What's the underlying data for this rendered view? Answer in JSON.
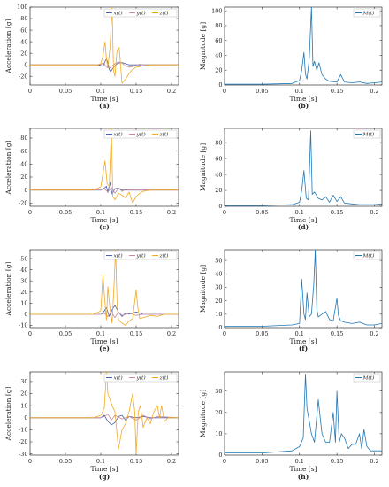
{
  "chart_data": [
    {
      "panel": "(a)",
      "type": "line",
      "xlabel": "Time [s]",
      "ylabel": "Acceleration [g]",
      "xlim": [
        0,
        0.21
      ],
      "ylim": [
        -35,
        100
      ],
      "xticks": [
        0,
        0.05,
        0.1,
        0.15,
        0.2
      ],
      "yticks": [
        -20,
        0,
        20,
        40,
        60,
        80,
        100
      ],
      "legend": [
        "x(t)",
        "y(t)",
        "z(t)"
      ],
      "legend_position": "top-right",
      "series": [
        {
          "name": "x(t)",
          "color": "#4a5fa8",
          "x": [
            0,
            0.095,
            0.1,
            0.103,
            0.106,
            0.108,
            0.11,
            0.112,
            0.114,
            0.116,
            0.119,
            0.122,
            0.125,
            0.13,
            0.135,
            0.14,
            0.15,
            0.16,
            0.17,
            0.18,
            0.21
          ],
          "y": [
            0,
            0,
            -1,
            -3,
            6,
            10,
            4,
            -8,
            -12,
            -8,
            -3,
            1,
            3,
            4,
            2,
            0,
            0,
            0,
            0,
            0,
            0
          ]
        },
        {
          "name": "y(t)",
          "color": "#c58aa0",
          "x": [
            0,
            0.095,
            0.1,
            0.104,
            0.108,
            0.112,
            0.116,
            0.12,
            0.125,
            0.13,
            0.135,
            0.14,
            0.145,
            0.15,
            0.155,
            0.16,
            0.17,
            0.21
          ],
          "y": [
            0,
            0,
            1,
            3,
            -4,
            -6,
            -2,
            2,
            5,
            3,
            -2,
            -4,
            -3,
            -1,
            1,
            0,
            0,
            0
          ]
        },
        {
          "name": "z(t)",
          "color": "#f2a922",
          "x": [
            0,
            0.095,
            0.1,
            0.103,
            0.106,
            0.108,
            0.11,
            0.113,
            0.116,
            0.118,
            0.12,
            0.123,
            0.126,
            0.13,
            0.135,
            0.14,
            0.145,
            0.15,
            0.16,
            0.17,
            0.21
          ],
          "y": [
            0,
            0,
            2,
            15,
            40,
            10,
            -5,
            30,
            100,
            -10,
            -20,
            25,
            30,
            -32,
            -25,
            -15,
            -8,
            -4,
            -2,
            0,
            0
          ]
        }
      ]
    },
    {
      "panel": "(b)",
      "type": "line",
      "xlabel": "Time [s]",
      "ylabel": "Magnitude [g]",
      "xlim": [
        0,
        0.21
      ],
      "ylim": [
        0,
        105
      ],
      "xticks": [
        0,
        0.05,
        0.1,
        0.15,
        0.2
      ],
      "yticks": [
        0,
        20,
        40,
        60,
        80,
        100
      ],
      "legend": [
        "M(t)"
      ],
      "legend_position": "top-right",
      "series": [
        {
          "name": "M(t)",
          "color": "#1f77b4",
          "x": [
            0,
            0.05,
            0.09,
            0.095,
            0.1,
            0.103,
            0.106,
            0.108,
            0.11,
            0.113,
            0.116,
            0.118,
            0.12,
            0.123,
            0.126,
            0.13,
            0.135,
            0.14,
            0.15,
            0.155,
            0.16,
            0.17,
            0.18,
            0.19,
            0.2,
            0.21
          ],
          "y": [
            1,
            1,
            2,
            4,
            6,
            20,
            44,
            15,
            8,
            35,
            105,
            25,
            32,
            20,
            30,
            14,
            8,
            5,
            4,
            14,
            4,
            3,
            4,
            2,
            3,
            4
          ]
        }
      ]
    },
    {
      "panel": "(c)",
      "type": "line",
      "xlabel": "Time [s]",
      "ylabel": "Acceleration [g]",
      "xlim": [
        0,
        0.21
      ],
      "ylim": [
        -25,
        95
      ],
      "xticks": [
        0,
        0.05,
        0.1,
        0.15,
        0.2
      ],
      "yticks": [
        -20,
        0,
        20,
        40,
        60,
        80
      ],
      "legend": [
        "x(t)",
        "y(t)",
        "z(t)"
      ],
      "legend_position": "top-right",
      "series": [
        {
          "name": "x(t)",
          "color": "#4a5fa8",
          "x": [
            0,
            0.1,
            0.105,
            0.108,
            0.11,
            0.113,
            0.116,
            0.12,
            0.125,
            0.13,
            0.21
          ],
          "y": [
            0,
            0,
            3,
            6,
            -4,
            12,
            -6,
            2,
            3,
            0,
            0
          ]
        },
        {
          "name": "y(t)",
          "color": "#c58aa0",
          "x": [
            0,
            0.1,
            0.105,
            0.11,
            0.115,
            0.12,
            0.125,
            0.13,
            0.135,
            0.14,
            0.21
          ],
          "y": [
            0,
            0,
            2,
            -3,
            4,
            -5,
            3,
            -2,
            1,
            0,
            0
          ]
        },
        {
          "name": "z(t)",
          "color": "#f2a922",
          "x": [
            0,
            0.09,
            0.1,
            0.103,
            0.106,
            0.109,
            0.112,
            0.115,
            0.117,
            0.12,
            0.125,
            0.13,
            0.135,
            0.14,
            0.145,
            0.15,
            0.155,
            0.16,
            0.17,
            0.21
          ],
          "y": [
            0,
            0,
            5,
            25,
            45,
            10,
            5,
            95,
            -10,
            -15,
            -5,
            -8,
            -12,
            -3,
            -20,
            -10,
            -5,
            -2,
            0,
            0
          ]
        }
      ]
    },
    {
      "panel": "(d)",
      "type": "line",
      "xlabel": "Time [s]",
      "ylabel": "Magnitude [g]",
      "xlim": [
        0,
        0.21
      ],
      "ylim": [
        0,
        98
      ],
      "xticks": [
        0,
        0.05,
        0.1,
        0.15,
        0.2
      ],
      "yticks": [
        0,
        20,
        40,
        60,
        80
      ],
      "legend": [
        "M(t)"
      ],
      "legend_position": "top-right",
      "series": [
        {
          "name": "M(t)",
          "color": "#1f77b4",
          "x": [
            0,
            0.05,
            0.09,
            0.1,
            0.103,
            0.106,
            0.109,
            0.112,
            0.115,
            0.117,
            0.12,
            0.125,
            0.13,
            0.135,
            0.14,
            0.145,
            0.15,
            0.155,
            0.16,
            0.17,
            0.18,
            0.2,
            0.21
          ],
          "y": [
            1,
            1,
            2,
            5,
            20,
            45,
            10,
            8,
            95,
            15,
            18,
            10,
            8,
            12,
            5,
            14,
            6,
            12,
            4,
            3,
            2,
            2,
            3
          ]
        }
      ]
    },
    {
      "panel": "(e)",
      "type": "line",
      "xlabel": "Time [s]",
      "ylabel": "Acceleration [g]",
      "xlim": [
        0,
        0.21
      ],
      "ylim": [
        -12,
        58
      ],
      "xticks": [
        0,
        0.05,
        0.1,
        0.15,
        0.2
      ],
      "yticks": [
        -10,
        0,
        10,
        20,
        30,
        40,
        50
      ],
      "legend": [
        "x(t)",
        "y(t)",
        "z(t)"
      ],
      "legend_position": "top-right",
      "series": [
        {
          "name": "x(t)",
          "color": "#4a5fa8",
          "x": [
            0,
            0.1,
            0.104,
            0.108,
            0.112,
            0.116,
            0.12,
            0.125,
            0.13,
            0.135,
            0.14,
            0.15,
            0.16,
            0.21
          ],
          "y": [
            0,
            0,
            2,
            6,
            -2,
            4,
            8,
            2,
            -2,
            1,
            0,
            2,
            0,
            0
          ]
        },
        {
          "name": "y(t)",
          "color": "#c58aa0",
          "x": [
            0,
            0.1,
            0.105,
            0.11,
            0.115,
            0.12,
            0.125,
            0.13,
            0.14,
            0.15,
            0.16,
            0.21
          ],
          "y": [
            0,
            0,
            1,
            -2,
            2,
            -3,
            2,
            -1,
            1,
            -1,
            0,
            0
          ]
        },
        {
          "name": "z(t)",
          "color": "#f2a922",
          "x": [
            0,
            0.09,
            0.1,
            0.103,
            0.106,
            0.108,
            0.11,
            0.113,
            0.116,
            0.119,
            0.121,
            0.123,
            0.125,
            0.13,
            0.135,
            0.14,
            0.145,
            0.15,
            0.152,
            0.155,
            0.16,
            0.17,
            0.18,
            0.19,
            0.21
          ],
          "y": [
            0,
            0,
            3,
            35,
            10,
            -5,
            25,
            5,
            -8,
            30,
            58,
            10,
            -5,
            -8,
            -10,
            -6,
            -4,
            22,
            8,
            -4,
            -3,
            -1,
            -2,
            0,
            0
          ]
        }
      ]
    },
    {
      "panel": "(f)",
      "type": "line",
      "xlabel": "Time [s]",
      "ylabel": "Magnitude [g]",
      "xlim": [
        0,
        0.21
      ],
      "ylim": [
        0,
        58
      ],
      "xticks": [
        0,
        0.05,
        0.1,
        0.15,
        0.2
      ],
      "yticks": [
        0,
        10,
        20,
        30,
        40,
        50
      ],
      "legend": [
        "M(t)"
      ],
      "legend_position": "top-right",
      "series": [
        {
          "name": "M(t)",
          "color": "#1f77b4",
          "x": [
            0,
            0.05,
            0.09,
            0.1,
            0.103,
            0.106,
            0.108,
            0.11,
            0.113,
            0.116,
            0.119,
            0.121,
            0.123,
            0.125,
            0.13,
            0.135,
            0.14,
            0.145,
            0.15,
            0.152,
            0.155,
            0.16,
            0.17,
            0.18,
            0.19,
            0.2,
            0.21
          ],
          "y": [
            1,
            1,
            2,
            3,
            36,
            10,
            6,
            26,
            8,
            10,
            32,
            58,
            14,
            8,
            10,
            12,
            6,
            5,
            22,
            9,
            5,
            4,
            3,
            4,
            2,
            2,
            3
          ]
        }
      ]
    },
    {
      "panel": "(g)",
      "type": "line",
      "xlabel": "Time [s]",
      "ylabel": "Acceleration [g]",
      "xlim": [
        0,
        0.21
      ],
      "ylim": [
        -31,
        38
      ],
      "xticks": [
        0,
        0.05,
        0.1,
        0.15,
        0.2
      ],
      "yticks": [
        -30,
        -20,
        -10,
        0,
        10,
        20,
        30
      ],
      "legend": [
        "x(t)",
        "y(t)",
        "z(t)"
      ],
      "legend_position": "top-right",
      "series": [
        {
          "name": "x(t)",
          "color": "#4a5fa8",
          "x": [
            0,
            0.1,
            0.105,
            0.11,
            0.115,
            0.12,
            0.125,
            0.13,
            0.135,
            0.14,
            0.15,
            0.16,
            0.17,
            0.18,
            0.21
          ],
          "y": [
            0,
            0,
            2,
            -3,
            -6,
            -4,
            1,
            2,
            -2,
            1,
            0,
            1,
            0,
            0,
            0
          ]
        },
        {
          "name": "y(t)",
          "color": "#c58aa0",
          "x": [
            0,
            0.1,
            0.105,
            0.11,
            0.115,
            0.12,
            0.13,
            0.14,
            0.15,
            0.16,
            0.17,
            0.18,
            0.21
          ],
          "y": [
            0,
            0,
            1,
            3,
            -2,
            2,
            -1,
            1,
            -2,
            2,
            -1,
            1,
            0
          ]
        },
        {
          "name": "z(t)",
          "color": "#f2a922",
          "x": [
            0,
            0.09,
            0.1,
            0.105,
            0.108,
            0.11,
            0.113,
            0.116,
            0.12,
            0.125,
            0.13,
            0.135,
            0.14,
            0.145,
            0.148,
            0.15,
            0.153,
            0.156,
            0.16,
            0.165,
            0.17,
            0.175,
            0.18,
            0.183,
            0.186,
            0.19,
            0.195,
            0.21
          ],
          "y": [
            0,
            0,
            2,
            8,
            38,
            20,
            15,
            10,
            5,
            -26,
            -10,
            -5,
            5,
            20,
            5,
            -30,
            5,
            10,
            -8,
            0,
            -5,
            5,
            10,
            0,
            10,
            -3,
            0,
            0
          ]
        }
      ]
    },
    {
      "panel": "(h)",
      "type": "line",
      "xlabel": "Time [s]",
      "ylabel": "Magnitude [g]",
      "xlim": [
        0,
        0.21
      ],
      "ylim": [
        0,
        39
      ],
      "xticks": [
        0,
        0.05,
        0.1,
        0.15,
        0.2
      ],
      "yticks": [
        0,
        10,
        20,
        30
      ],
      "legend": [
        "M(t)"
      ],
      "legend_position": "top-right",
      "series": [
        {
          "name": "M(t)",
          "color": "#1f77b4",
          "x": [
            0,
            0.05,
            0.09,
            0.1,
            0.105,
            0.108,
            0.11,
            0.113,
            0.116,
            0.12,
            0.125,
            0.13,
            0.135,
            0.14,
            0.145,
            0.148,
            0.15,
            0.153,
            0.156,
            0.16,
            0.165,
            0.17,
            0.175,
            0.18,
            0.183,
            0.186,
            0.19,
            0.195,
            0.2,
            0.21
          ],
          "y": [
            1,
            1,
            2,
            4,
            8,
            38,
            22,
            16,
            10,
            6,
            26,
            10,
            6,
            6,
            20,
            6,
            30,
            6,
            10,
            8,
            3,
            5,
            5,
            10,
            3,
            12,
            4,
            2,
            2,
            2
          ]
        }
      ]
    }
  ]
}
